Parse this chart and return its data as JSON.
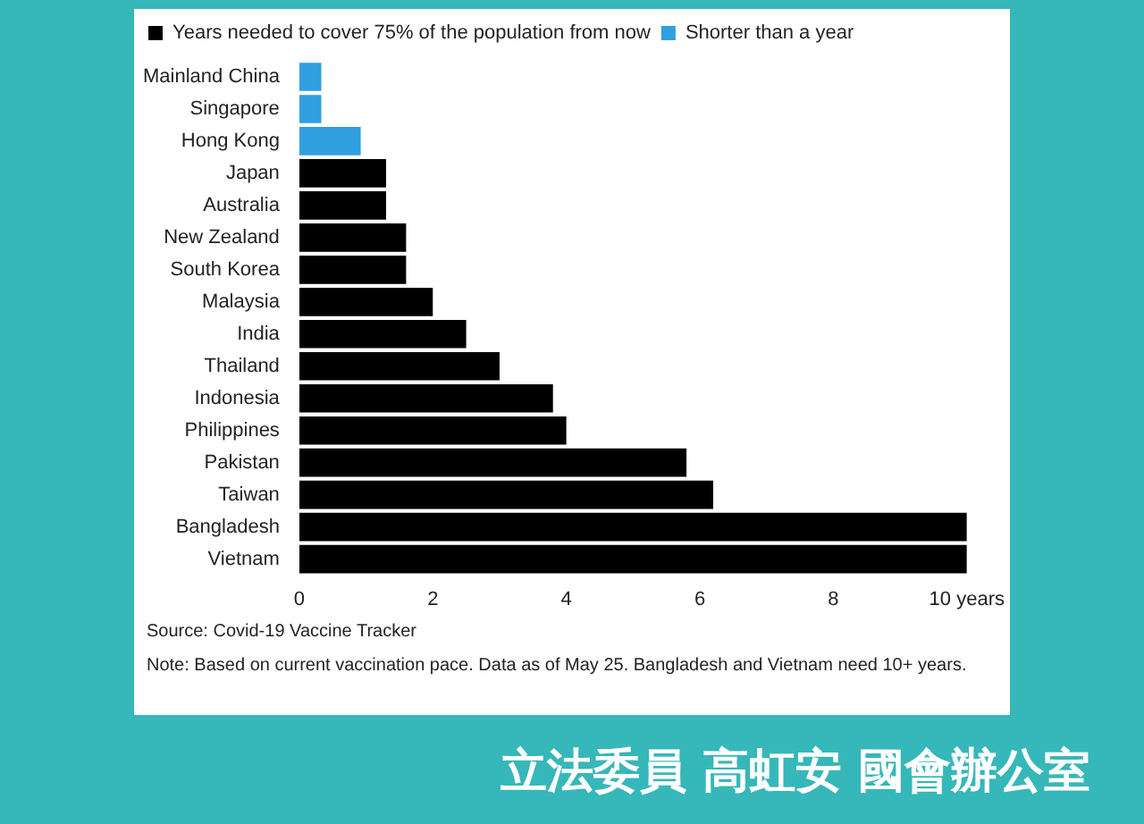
{
  "chart_data": {
    "type": "bar",
    "orientation": "horizontal",
    "stacked": true,
    "categories": [
      "Mainland China",
      "Singapore",
      "Hong Kong",
      "Japan",
      "Australia",
      "New Zealand",
      "South Korea",
      "Malaysia",
      "India",
      "Thailand",
      "Indonesia",
      "Philippines",
      "Pakistan",
      "Taiwan",
      "Bangladesh",
      "Vietnam"
    ],
    "series": [
      {
        "name": "Years needed to cover 75% of the population from now",
        "color": "#000000",
        "values": [
          null,
          null,
          null,
          1.3,
          1.3,
          1.6,
          1.6,
          2.0,
          2.5,
          3.0,
          3.8,
          4.0,
          5.8,
          6.2,
          10,
          10
        ]
      },
      {
        "name": "Shorter than a year",
        "color": "#2f9fe0",
        "values": [
          0.33,
          0.33,
          0.92,
          null,
          null,
          null,
          null,
          null,
          null,
          null,
          null,
          null,
          null,
          null,
          null,
          null
        ]
      }
    ],
    "xlim": [
      0,
      10
    ],
    "xticks": [
      0,
      2,
      4,
      6,
      8,
      {
        "value": 10,
        "label": "10 years"
      }
    ],
    "grid": false,
    "legend": "top left",
    "annotations": [
      "Source: Covid-19 Vaccine Tracker",
      "Note: Based on current vaccination pace. Data as of May 25. Bangladesh and Vietnam need 10+ years.",
      "立法委員 高虹安 國會辦公室"
    ]
  }
}
